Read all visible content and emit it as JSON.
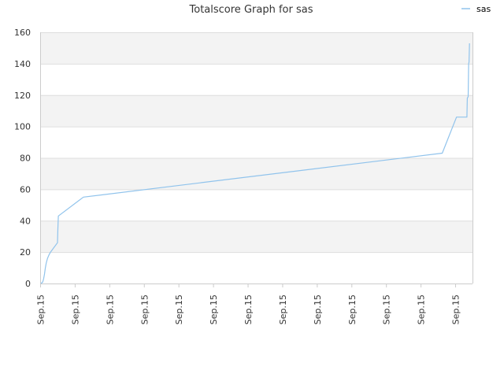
{
  "chart_data": {
    "type": "line",
    "title": "Totalscore Graph for sas",
    "xlabel": "",
    "ylabel": "",
    "ylim": [
      0,
      160
    ],
    "yticks": [
      0,
      20,
      40,
      60,
      80,
      100,
      120,
      140,
      160
    ],
    "xlim": [
      0,
      100
    ],
    "xtick_positions": [
      0,
      8,
      16,
      24,
      32,
      40,
      48,
      56,
      64,
      72,
      80,
      88,
      96
    ],
    "xtick_label": "Sep.15",
    "grid": true,
    "alternating_bands": true,
    "legend_position": "top-right",
    "series": [
      {
        "name": "sas",
        "color": "#90c3ec",
        "points": [
          [
            0.2,
            0
          ],
          [
            0.6,
            1
          ],
          [
            0.8,
            3
          ],
          [
            1.0,
            6
          ],
          [
            1.2,
            10
          ],
          [
            1.4,
            13
          ],
          [
            1.7,
            16
          ],
          [
            2.0,
            18
          ],
          [
            2.4,
            20
          ],
          [
            4.0,
            26
          ],
          [
            4.1,
            35
          ],
          [
            4.2,
            43
          ],
          [
            10.0,
            55
          ],
          [
            93.0,
            83
          ],
          [
            96.3,
            106
          ],
          [
            98.7,
            106
          ],
          [
            98.8,
            118
          ],
          [
            99.0,
            119
          ],
          [
            99.1,
            140
          ],
          [
            99.2,
            141
          ],
          [
            99.3,
            153
          ]
        ]
      }
    ]
  },
  "colors": {
    "band": "#f3f3f3",
    "gridline": "#dddddd",
    "axis": "#cccccc",
    "background": "#ffffff"
  }
}
